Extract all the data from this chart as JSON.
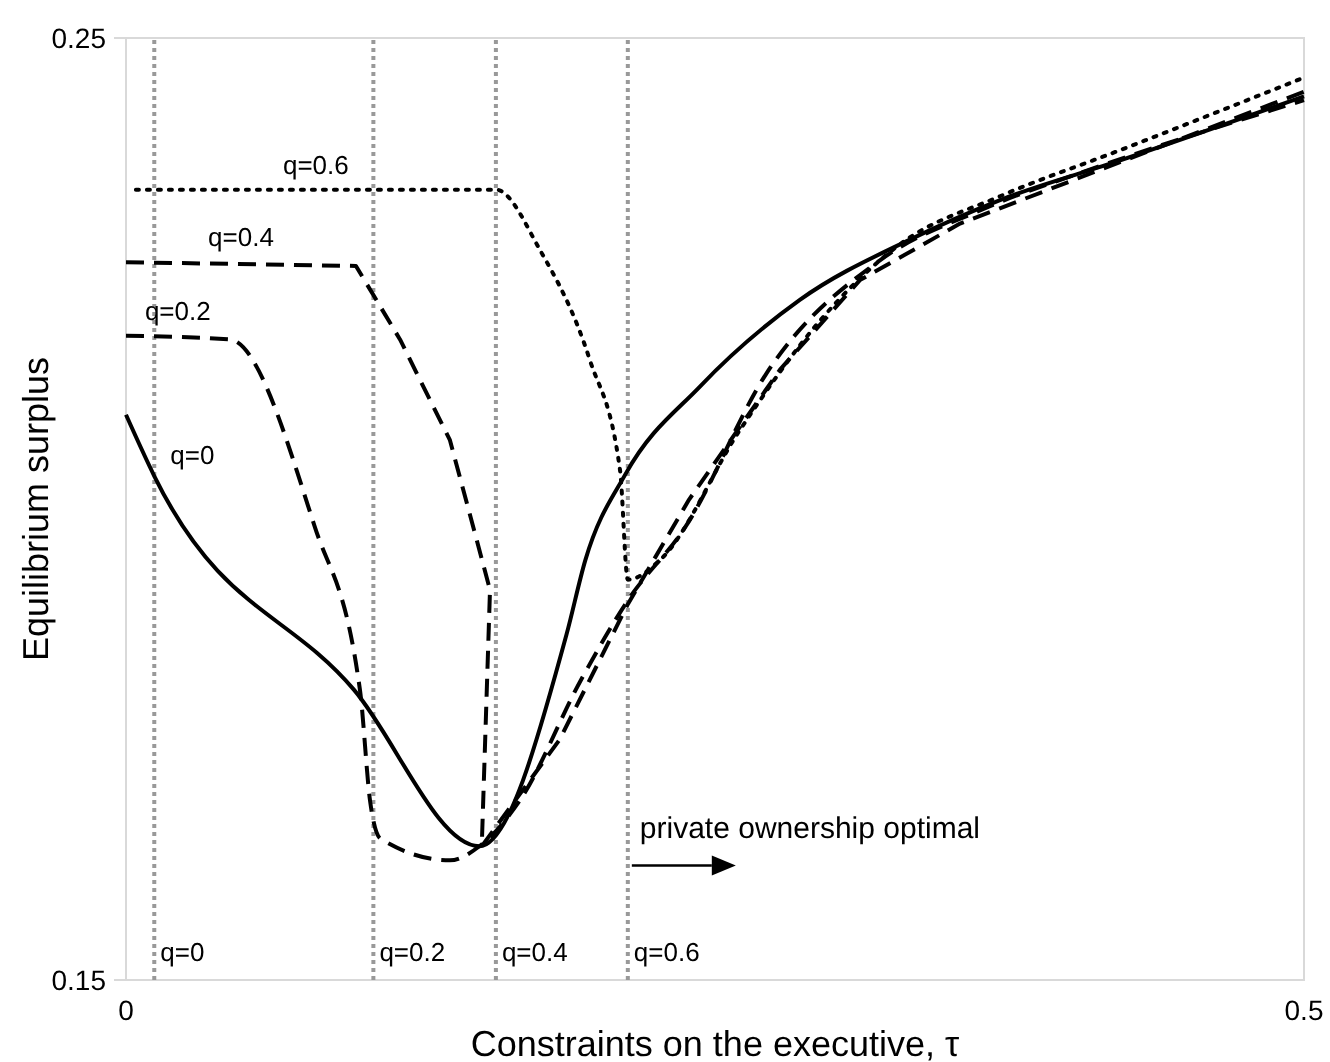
{
  "chart_data": {
    "type": "line",
    "xlabel": "Constraints on the executive, τ",
    "ylabel": "Equilibrium surplus",
    "xlim": [
      0,
      0.5
    ],
    "ylim": [
      0.15,
      0.25
    ],
    "xticks": [
      0,
      0.5
    ],
    "yticks": [
      0.15,
      0.25
    ],
    "marker": "none",
    "series": [
      {
        "name": "q=0",
        "color": "#000000",
        "line_style": "solid",
        "x": [
          0,
          0.012,
          0.0968,
          0.15,
          0.187,
          0.195,
          0.212,
          0.2436,
          0.286,
          0.3327,
          0.371,
          0.422,
          0.5
        ],
        "values": [
          0.21,
          0.2035,
          0.1808,
          0.1642,
          0.1867,
          0.1946,
          0.2037,
          0.213,
          0.2222,
          0.2286,
          0.2328,
          0.237,
          0.2438
        ]
      },
      {
        "name": "q=0.2",
        "color": "#000000",
        "line_style": "dashed",
        "x": [
          0,
          0.044,
          0.08,
          0.0993,
          0.1036,
          0.108,
          0.1375,
          0.15,
          0.167,
          0.193,
          0.213,
          0.2377,
          0.2716,
          0.32,
          0.3625,
          0.4134,
          0.5
        ],
        "values": [
          0.2184,
          0.218,
          0.1982,
          0.1808,
          0.169,
          0.165,
          0.1627,
          0.1642,
          0.169,
          0.1818,
          0.1903,
          0.1982,
          0.2143,
          0.2264,
          0.2317,
          0.2364,
          0.2434
        ]
      },
      {
        "name": "q=0.4",
        "color": "#000000",
        "line_style": "dashed",
        "x": [
          0,
          0.0976,
          0.1163,
          0.1375,
          0.1477,
          0.1545,
          0.151,
          0.184,
          0.213,
          0.239,
          0.2776,
          0.3115,
          0.354,
          0.4134,
          0.5
        ],
        "values": [
          0.2262,
          0.2258,
          0.218,
          0.2073,
          0.1978,
          0.1914,
          0.1642,
          0.1755,
          0.1899,
          0.201,
          0.2148,
          0.2243,
          0.2303,
          0.236,
          0.2443
        ]
      },
      {
        "name": "q=0.6",
        "color": "#000000",
        "line_style": "dotted",
        "x": [
          0.0042,
          0.157,
          0.1757,
          0.1969,
          0.2097,
          0.213,
          0.2267,
          0.2606,
          0.2946,
          0.3285,
          0.371,
          0.422,
          0.5
        ],
        "values": [
          0.2339,
          0.2339,
          0.2275,
          0.2158,
          0.2041,
          0.1925,
          0.1946,
          0.2084,
          0.22,
          0.2281,
          0.2332,
          0.2381,
          0.2458
        ]
      }
    ],
    "ref_lines": [
      {
        "axis": "x",
        "value": 0.012,
        "color": "#999999",
        "line_style": "dotted"
      },
      {
        "axis": "x",
        "value": 0.105,
        "color": "#999999",
        "line_style": "dotted"
      },
      {
        "axis": "x",
        "value": 0.157,
        "color": "#999999",
        "line_style": "dotted"
      },
      {
        "axis": "x",
        "value": 0.213,
        "color": "#999999",
        "line_style": "dotted"
      }
    ],
    "annotations": [
      {
        "text": "private ownership optimal",
        "x": 0.213,
        "y": 0.163
      },
      {
        "text": "q=0",
        "x": 0.012,
        "y": 0.152
      },
      {
        "text": "q=0.2",
        "x": 0.105,
        "y": 0.152
      },
      {
        "text": "q=0.4",
        "x": 0.157,
        "y": 0.152
      },
      {
        "text": "q=0.6",
        "x": 0.213,
        "y": 0.152
      }
    ]
  }
}
